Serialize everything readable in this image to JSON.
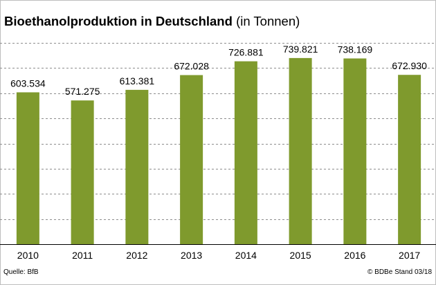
{
  "title": {
    "main": "Bioethanolproduktion in Deutschland",
    "unit": "(in Tonnen)"
  },
  "footer": {
    "source": "Quelle:  BfB",
    "copyright": "© BDBe Stand 03/18"
  },
  "colors": {
    "bar": "#7f9a2d",
    "grid": "#8c8c8c",
    "axis": "#000000"
  },
  "chart_data": {
    "type": "bar",
    "title": "Bioethanolproduktion in Deutschland (in Tonnen)",
    "xlabel": "",
    "ylabel": "",
    "categories": [
      "2010",
      "2011",
      "2012",
      "2013",
      "2014",
      "2015",
      "2016",
      "2017"
    ],
    "values": [
      603534,
      571275,
      613381,
      672028,
      726881,
      739821,
      738169,
      672930
    ],
    "value_labels": [
      "603.534",
      "571.275",
      "613.381",
      "672.028",
      "726.881",
      "739.821",
      "738.169",
      "672.930"
    ],
    "ylim": [
      0,
      800000
    ],
    "grid": true,
    "grid_style": "dashed",
    "legend": "none"
  }
}
